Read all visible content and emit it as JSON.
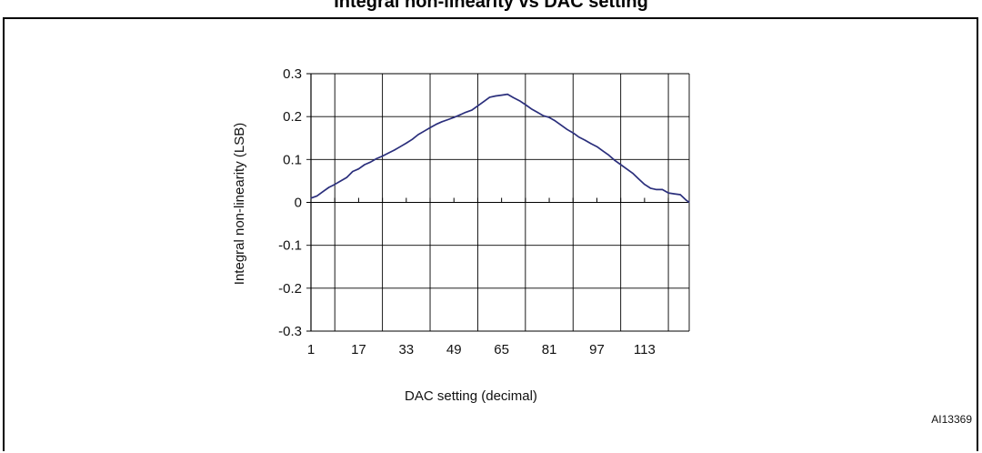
{
  "figure": {
    "title": "Integral non-linearity vs DAC setting",
    "tag": "AI13369"
  },
  "chart_data": {
    "type": "line",
    "title": "Integral non-linearity vs DAC setting",
    "xlabel": "DAC setting (decimal)",
    "ylabel": "Integral non-linearity (LSB)",
    "xlim": [
      1,
      128
    ],
    "ylim": [
      -0.3,
      0.3
    ],
    "x_tick_labels": [
      "1",
      "17",
      "33",
      "49",
      "65",
      "81",
      "97",
      "113"
    ],
    "y_tick_labels": [
      "-0.3",
      "-0.2",
      "-0.1",
      "0",
      "0.1",
      "0.2",
      "0.3"
    ],
    "grid": true,
    "line_color": "#2b2f7c",
    "series": [
      {
        "x": [
          1,
          3,
          5,
          7,
          9,
          11,
          13,
          15,
          17,
          19,
          21,
          23,
          25,
          27,
          29,
          31,
          33,
          35,
          37,
          39,
          41,
          43,
          45,
          47,
          49,
          51,
          53,
          55,
          57,
          59,
          61,
          63,
          65,
          67,
          69,
          71,
          73,
          75,
          77,
          79,
          81,
          83,
          85,
          87,
          89,
          91,
          93,
          95,
          97,
          99,
          101,
          103,
          105,
          107,
          109,
          111,
          113,
          115,
          117,
          119,
          121,
          123,
          125,
          127,
          128
        ],
        "y": [
          0.01,
          0.015,
          0.025,
          0.035,
          0.042,
          0.05,
          0.058,
          0.072,
          0.078,
          0.088,
          0.094,
          0.102,
          0.108,
          0.115,
          0.122,
          0.13,
          0.138,
          0.147,
          0.158,
          0.166,
          0.174,
          0.182,
          0.188,
          0.193,
          0.198,
          0.204,
          0.21,
          0.215,
          0.225,
          0.235,
          0.245,
          0.248,
          0.25,
          0.252,
          0.244,
          0.237,
          0.228,
          0.218,
          0.21,
          0.202,
          0.198,
          0.19,
          0.18,
          0.17,
          0.162,
          0.152,
          0.145,
          0.137,
          0.13,
          0.12,
          0.11,
          0.098,
          0.088,
          0.078,
          0.068,
          0.055,
          0.042,
          0.033,
          0.03,
          0.03,
          0.022,
          0.02,
          0.018,
          0.005,
          0.0
        ]
      }
    ]
  }
}
